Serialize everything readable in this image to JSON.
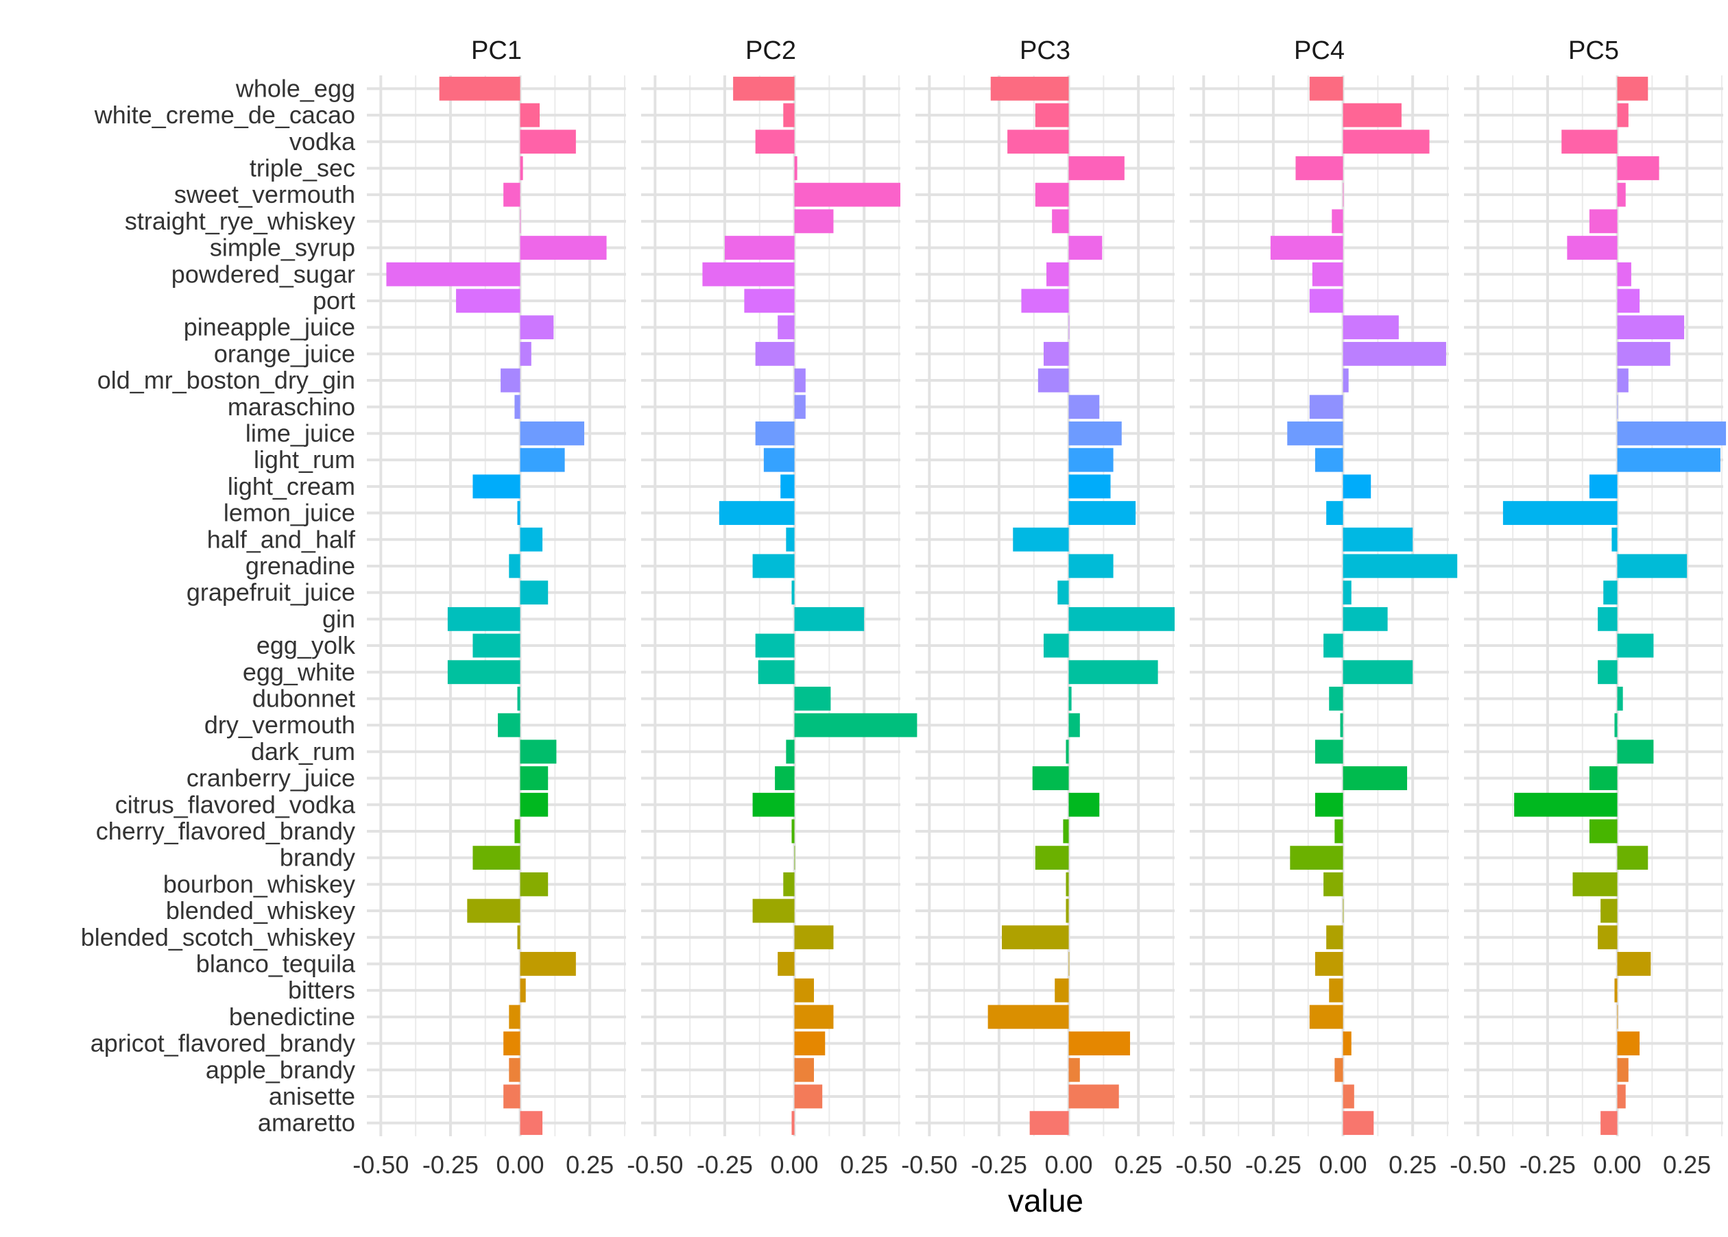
{
  "chart_data": {
    "type": "bar",
    "orientation": "horizontal",
    "facets": [
      "PC1",
      "PC2",
      "PC3",
      "PC4",
      "PC5"
    ],
    "xlabel": "value",
    "ylabel": "",
    "xlim": [
      -0.55,
      0.38
    ],
    "xticks": [
      -0.5,
      -0.25,
      0.0,
      0.25
    ],
    "xtick_labels": [
      "-0.50",
      "-0.25",
      "0.00",
      "0.25"
    ],
    "grid": true,
    "legend": "none",
    "categories": [
      "amaretto",
      "anisette",
      "apple_brandy",
      "apricot_flavored_brandy",
      "benedictine",
      "bitters",
      "blanco_tequila",
      "blended_scotch_whiskey",
      "blended_whiskey",
      "bourbon_whiskey",
      "brandy",
      "cherry_flavored_brandy",
      "citrus_flavored_vodka",
      "cranberry_juice",
      "dark_rum",
      "dry_vermouth",
      "dubonnet",
      "egg_white",
      "egg_yolk",
      "gin",
      "grapefruit_juice",
      "grenadine",
      "half_and_half",
      "lemon_juice",
      "light_cream",
      "light_rum",
      "lime_juice",
      "maraschino",
      "old_mr_boston_dry_gin",
      "orange_juice",
      "pineapple_juice",
      "port",
      "powdered_sugar",
      "simple_syrup",
      "straight_rye_whiskey",
      "sweet_vermouth",
      "triple_sec",
      "vodka",
      "white_creme_de_cacao",
      "whole_egg"
    ],
    "colors": [
      "#F8766D",
      "#F37B59",
      "#EC8239",
      "#E58700",
      "#DA8F00",
      "#CF9400",
      "#C09B00",
      "#AFA100",
      "#9CA700",
      "#86AC00",
      "#6BB100",
      "#47B500",
      "#00B81F",
      "#00BB4E",
      "#00BD6B",
      "#00BF7D",
      "#00C08E",
      "#00C19F",
      "#00C1AE",
      "#00BFBC",
      "#00BECA",
      "#00BBD7",
      "#00B8E3",
      "#00B3EF",
      "#00ACFA",
      "#35A2FF",
      "#6D9BFF",
      "#8F91FF",
      "#A787FF",
      "#BB7FFF",
      "#CC77FF",
      "#DA6FFE",
      "#E56AF4",
      "#EE67E9",
      "#F564DA",
      "#FA62CA",
      "#FD61BA",
      "#FF62A8",
      "#FF6595",
      "#FC6B81"
    ],
    "series": [
      {
        "name": "PC1",
        "values": [
          0.08,
          -0.06,
          -0.04,
          -0.06,
          -0.04,
          0.02,
          0.2,
          -0.01,
          -0.19,
          0.1,
          -0.17,
          -0.02,
          0.1,
          0.1,
          0.13,
          -0.08,
          -0.01,
          -0.26,
          -0.17,
          -0.26,
          0.1,
          -0.04,
          0.08,
          -0.01,
          -0.17,
          0.16,
          0.23,
          -0.02,
          -0.07,
          0.04,
          0.12,
          -0.23,
          -0.48,
          0.31,
          0.0,
          -0.06,
          0.01,
          0.2,
          0.07,
          -0.29
        ]
      },
      {
        "name": "PC2",
        "values": [
          -0.01,
          0.1,
          0.07,
          0.11,
          0.14,
          0.07,
          -0.06,
          0.14,
          -0.15,
          -0.04,
          0.0,
          -0.01,
          -0.15,
          -0.07,
          -0.03,
          0.44,
          0.13,
          -0.13,
          -0.14,
          0.25,
          -0.01,
          -0.15,
          -0.03,
          -0.27,
          -0.05,
          -0.11,
          -0.14,
          0.04,
          0.04,
          -0.14,
          -0.06,
          -0.18,
          -0.33,
          -0.25,
          0.14,
          0.38,
          0.01,
          -0.14,
          -0.04,
          -0.22
        ]
      },
      {
        "name": "PC3",
        "values": [
          -0.14,
          0.18,
          0.04,
          0.22,
          -0.29,
          -0.05,
          0.0,
          -0.24,
          -0.01,
          -0.01,
          -0.12,
          -0.02,
          0.11,
          -0.13,
          -0.01,
          0.04,
          0.01,
          0.32,
          -0.09,
          0.38,
          -0.04,
          0.16,
          -0.2,
          0.24,
          0.15,
          0.16,
          0.19,
          0.11,
          -0.11,
          -0.09,
          0.0,
          -0.17,
          -0.08,
          0.12,
          -0.06,
          -0.12,
          0.2,
          -0.22,
          -0.12,
          -0.28
        ]
      },
      {
        "name": "PC4",
        "values": [
          0.11,
          0.04,
          -0.03,
          0.03,
          -0.12,
          -0.05,
          -0.1,
          -0.06,
          0.0,
          -0.07,
          -0.19,
          -0.03,
          -0.1,
          0.23,
          -0.1,
          -0.01,
          -0.05,
          0.25,
          -0.07,
          0.16,
          0.03,
          0.41,
          0.25,
          -0.06,
          0.1,
          -0.1,
          -0.2,
          -0.12,
          0.02,
          0.37,
          0.2,
          -0.12,
          -0.11,
          -0.26,
          -0.04,
          0.0,
          -0.17,
          0.31,
          0.21,
          -0.12
        ]
      },
      {
        "name": "PC5",
        "values": [
          -0.06,
          0.03,
          0.04,
          0.08,
          0.0,
          -0.01,
          0.12,
          -0.07,
          -0.06,
          -0.16,
          0.11,
          -0.1,
          -0.37,
          -0.1,
          0.13,
          -0.01,
          0.02,
          -0.07,
          0.13,
          -0.07,
          -0.05,
          0.25,
          -0.02,
          -0.41,
          -0.1,
          0.37,
          0.39,
          0.0,
          0.04,
          0.19,
          0.24,
          0.08,
          0.05,
          -0.18,
          -0.1,
          0.03,
          0.15,
          -0.2,
          0.04,
          0.11
        ]
      }
    ]
  }
}
